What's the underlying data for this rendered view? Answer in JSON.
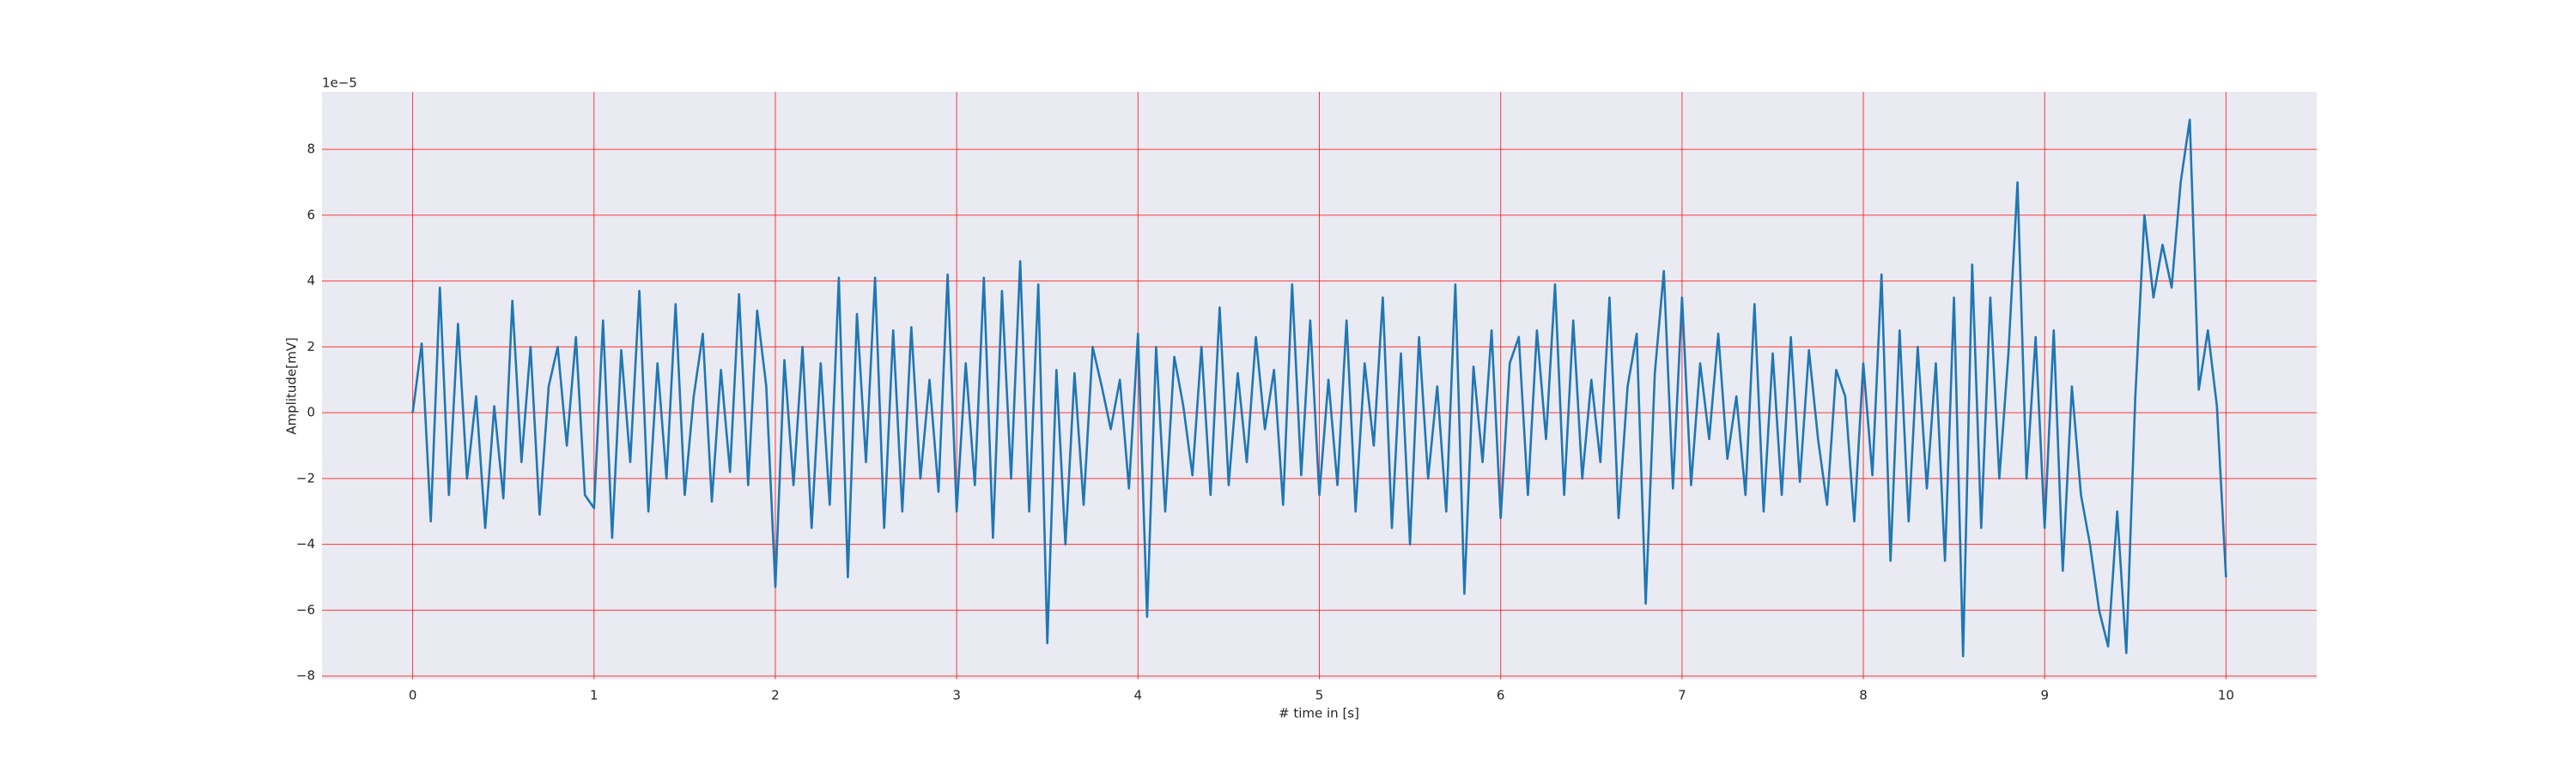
{
  "chart_data": {
    "type": "line",
    "x_label": "# time in [s]",
    "y_label": "Amplitude[mV]",
    "y_offset_label": "1e−5",
    "xlim": [
      -0.5,
      10.5
    ],
    "ylim": [
      -8.1,
      9.75
    ],
    "xticks": [
      0,
      1,
      2,
      3,
      4,
      5,
      6,
      7,
      8,
      9,
      10
    ],
    "yticks": [
      {
        "value": -8,
        "label": "−8"
      },
      {
        "value": -6,
        "label": "−6"
      },
      {
        "value": -4,
        "label": "−4"
      },
      {
        "value": -2,
        "label": "−2"
      },
      0,
      2,
      4,
      6,
      8
    ],
    "grid": true,
    "grid_color": "#ff0000",
    "background": "#eaeaf2",
    "x": [
      0,
      0.05,
      0.1,
      0.15,
      0.2,
      0.25,
      0.3,
      0.35,
      0.4,
      0.45,
      0.5,
      0.55,
      0.6,
      0.65,
      0.7,
      0.75,
      0.8,
      0.85,
      0.9,
      0.95,
      1,
      1.05,
      1.1,
      1.15,
      1.2,
      1.25,
      1.3,
      1.35,
      1.4,
      1.45,
      1.5,
      1.55,
      1.6,
      1.65,
      1.7,
      1.75,
      1.8,
      1.85,
      1.9,
      1.95,
      2,
      2.05,
      2.1,
      2.15,
      2.2,
      2.25,
      2.3,
      2.35,
      2.4,
      2.45,
      2.5,
      2.55,
      2.6,
      2.65,
      2.7,
      2.75,
      2.8,
      2.85,
      2.9,
      2.95,
      3,
      3.05,
      3.1,
      3.15,
      3.2,
      3.25,
      3.3,
      3.35,
      3.4,
      3.45,
      3.5,
      3.55,
      3.6,
      3.65,
      3.7,
      3.75,
      3.8,
      3.85,
      3.9,
      3.95,
      4,
      4.05,
      4.1,
      4.15,
      4.2,
      4.25,
      4.3,
      4.35,
      4.4,
      4.45,
      4.5,
      4.55,
      4.6,
      4.65,
      4.7,
      4.75,
      4.8,
      4.85,
      4.9,
      4.95,
      5,
      5.05,
      5.1,
      5.15,
      5.2,
      5.25,
      5.3,
      5.35,
      5.4,
      5.45,
      5.5,
      5.55,
      5.6,
      5.65,
      5.7,
      5.75,
      5.8,
      5.85,
      5.9,
      5.95,
      6,
      6.05,
      6.1,
      6.15,
      6.2,
      6.25,
      6.3,
      6.35,
      6.4,
      6.45,
      6.5,
      6.55,
      6.6,
      6.65,
      6.7,
      6.75,
      6.8,
      6.85,
      6.9,
      6.95,
      7,
      7.05,
      7.1,
      7.15,
      7.2,
      7.25,
      7.3,
      7.35,
      7.4,
      7.45,
      7.5,
      7.55,
      7.6,
      7.65,
      7.7,
      7.75,
      7.8,
      7.85,
      7.9,
      7.95,
      8,
      8.05,
      8.1,
      8.15,
      8.2,
      8.25,
      8.3,
      8.35,
      8.4,
      8.45,
      8.5,
      8.55,
      8.6,
      8.65,
      8.7,
      8.75,
      8.8,
      8.85,
      8.9,
      8.95,
      9,
      9.05,
      9.1,
      9.15,
      9.2,
      9.25,
      9.3,
      9.35,
      9.4,
      9.45,
      9.5,
      9.55,
      9.6,
      9.65,
      9.7,
      9.75,
      9.8,
      9.85,
      9.9,
      9.95,
      10
    ],
    "series": [
      {
        "color": "#1f77b4",
        "values": [
          0,
          2.1,
          -3.3,
          3.8,
          -2.5,
          2.7,
          -2.0,
          0.5,
          -3.5,
          0.2,
          -2.6,
          3.4,
          -1.5,
          2.0,
          -3.1,
          0.8,
          2.0,
          -1.0,
          2.3,
          -2.5,
          -2.9,
          2.8,
          -3.8,
          1.9,
          -1.5,
          3.7,
          -3.0,
          1.5,
          -2.0,
          3.3,
          -2.5,
          0.5,
          2.4,
          -2.7,
          1.3,
          -1.8,
          3.6,
          -2.2,
          3.1,
          0.8,
          -5.3,
          1.6,
          -2.2,
          2.0,
          -3.5,
          1.5,
          -2.8,
          4.1,
          -5.0,
          3.0,
          -1.5,
          4.1,
          -3.5,
          2.5,
          -3.0,
          2.6,
          -2.0,
          1.0,
          -2.4,
          4.2,
          -3.0,
          1.5,
          -2.2,
          4.1,
          -3.8,
          3.7,
          -2.0,
          4.6,
          -3.0,
          3.9,
          -7.0,
          1.3,
          -4.0,
          1.2,
          -2.8,
          2.0,
          0.8,
          -0.5,
          1.0,
          -2.3,
          2.4,
          -6.2,
          2.0,
          -3.0,
          1.7,
          0.2,
          -1.9,
          2.0,
          -2.5,
          3.2,
          -2.2,
          1.2,
          -1.5,
          2.3,
          -0.5,
          1.3,
          -2.8,
          3.9,
          -1.9,
          2.8,
          -2.5,
          1.0,
          -2.2,
          2.8,
          -3.0,
          1.5,
          -1.0,
          3.5,
          -3.5,
          1.8,
          -4.0,
          2.3,
          -2.0,
          0.8,
          -3.0,
          3.9,
          -5.5,
          1.4,
          -1.5,
          2.5,
          -3.2,
          1.5,
          2.3,
          -2.5,
          2.5,
          -0.8,
          3.9,
          -2.5,
          2.8,
          -2.0,
          1.0,
          -1.5,
          3.5,
          -3.2,
          0.8,
          2.4,
          -5.8,
          1.2,
          4.3,
          -2.3,
          3.5,
          -2.2,
          1.5,
          -0.8,
          2.4,
          -1.4,
          0.5,
          -2.5,
          3.3,
          -3.0,
          1.8,
          -2.5,
          2.3,
          -2.1,
          1.9,
          -0.8,
          -2.8,
          1.3,
          0.5,
          -3.3,
          1.5,
          -1.9,
          4.2,
          -4.5,
          2.5,
          -3.3,
          2.0,
          -2.3,
          1.5,
          -4.5,
          3.5,
          -7.4,
          4.5,
          -3.5,
          3.5,
          -2.0,
          1.8,
          7.0,
          -2.0,
          2.3,
          -3.5,
          2.5,
          -4.8,
          0.8,
          -2.5,
          -4.0,
          -6.0,
          -7.1,
          -3.0,
          -7.3,
          0.5,
          6.0,
          3.5,
          5.1,
          3.8,
          7.0,
          8.9,
          0.7,
          2.5,
          0.2,
          -5.0
        ]
      }
    ]
  }
}
